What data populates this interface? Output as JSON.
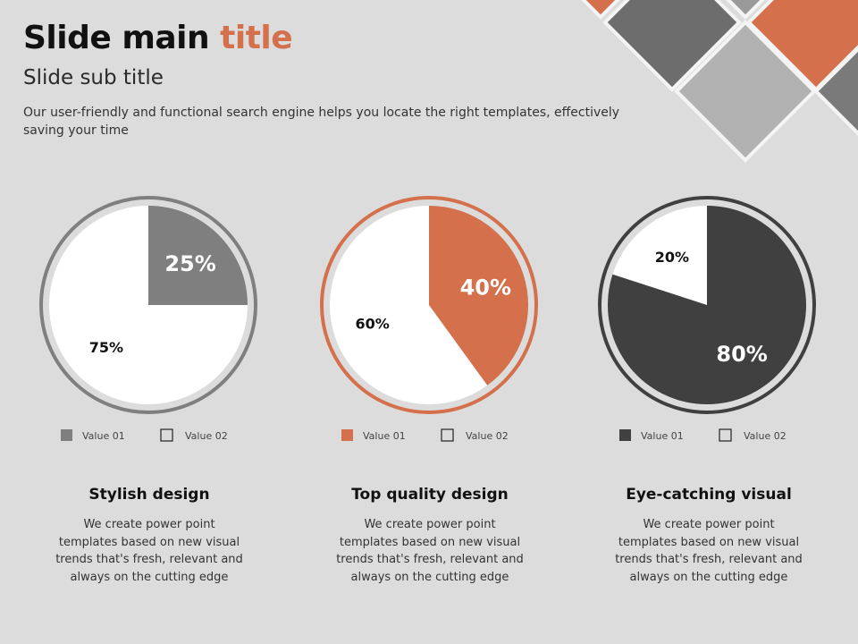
{
  "slide": {
    "title_main": "Slide main ",
    "title_accent": "title",
    "subtitle": "Slide sub title",
    "description": "Our user-friendly and functional search engine helps you locate the right templates, effectively saving your time"
  },
  "colors": {
    "background": "#dcdcdc",
    "accent": "#d4704b",
    "gray": "#7f7f7f",
    "dark": "#404040",
    "white": "#ffffff"
  },
  "chart_data": [
    {
      "type": "pie",
      "labels": [
        "Value 01",
        "Value 02"
      ],
      "values": [
        25,
        75
      ],
      "value_labels": [
        "25%",
        "75%"
      ],
      "legend": "bottom",
      "color": "#7f7f7f"
    },
    {
      "type": "pie",
      "labels": [
        "Value 01",
        "Value 02"
      ],
      "values": [
        40,
        60
      ],
      "value_labels": [
        "40%",
        "60%"
      ],
      "legend": "bottom",
      "color": "#d4704b"
    },
    {
      "type": "pie",
      "labels": [
        "Value 01",
        "Value 02"
      ],
      "values": [
        80,
        20
      ],
      "value_labels": [
        "80%",
        "20%"
      ],
      "legend": "bottom",
      "color": "#404040"
    }
  ],
  "features": [
    {
      "title": "Stylish design",
      "text": "We create power point templates based on new visual trends that's fresh, relevant and always on the cutting edge"
    },
    {
      "title": "Top quality design",
      "text": "We create power point templates based on new visual trends that's fresh, relevant and always on the cutting edge"
    },
    {
      "title": "Eye-catching visual",
      "text": "We create power point templates based on new visual trends that's fresh, relevant and always on the cutting edge"
    }
  ]
}
